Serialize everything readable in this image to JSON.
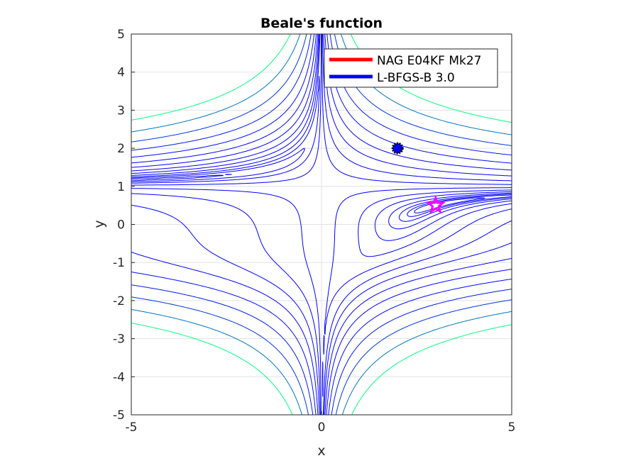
{
  "chart_data": {
    "type": "contour",
    "title": "Beale's function",
    "xlabel": "x",
    "ylabel": "y",
    "xlim": [
      -5,
      5
    ],
    "ylim": [
      -5,
      5
    ],
    "xticks": [
      -5,
      0,
      5
    ],
    "yticks": [
      -5,
      -4,
      -3,
      -2,
      -1,
      0,
      1,
      2,
      3,
      4,
      5
    ],
    "grid": true,
    "colormap": "winter",
    "levels": [
      0.1,
      0.22,
      0.46,
      1,
      2.2,
      4.6,
      10,
      22,
      46,
      100,
      215,
      464,
      1000,
      2154,
      4642,
      10000
    ],
    "markers": [
      {
        "name": "start",
        "x": 2,
        "y": 2,
        "shape": "circle",
        "fill": "#0000ff",
        "edge": "#000000"
      },
      {
        "name": "minimum",
        "x": 3,
        "y": 0.5,
        "shape": "pentagram",
        "color": "#ff00ff"
      }
    ],
    "legend": {
      "placement": "top-right",
      "entries": [
        {
          "label": "NAG E04KF Mk27",
          "color": "#ff0000"
        },
        {
          "label": "L-BFGS-B 3.0",
          "color": "#0000ff"
        }
      ]
    }
  }
}
